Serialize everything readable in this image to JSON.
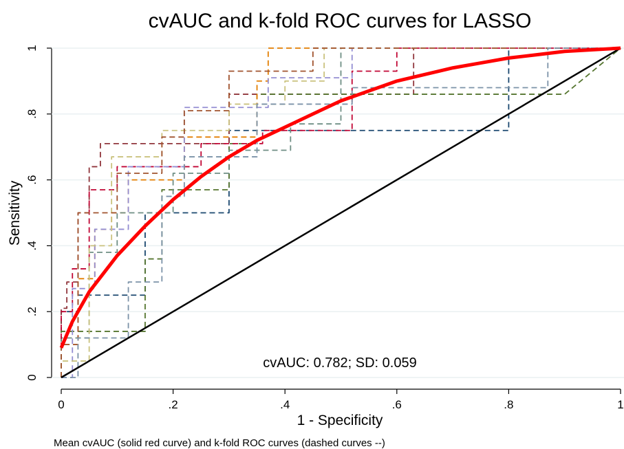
{
  "chart_data": {
    "type": "line",
    "title": "cvAUC and k-fold ROC curves for LASSO",
    "x_label": "1 - Specificity",
    "y_label": "Sensitivity",
    "annotation": "cvAUC: 0.782; SD: 0.059",
    "note": "Mean cvAUC (solid red curve) and k-fold ROC curves (dashed curves --)",
    "xlim": [
      0,
      1
    ],
    "ylim": [
      0,
      1
    ],
    "xticks": [
      0,
      {
        "value": 0.2,
        "label": ".2"
      },
      {
        "value": 0.4,
        "label": ".4"
      },
      {
        "value": 0.6,
        "label": ".6"
      },
      {
        "value": 0.8,
        "label": ".8"
      },
      1
    ],
    "yticks": [
      0,
      {
        "value": 0.2,
        "label": ".2"
      },
      {
        "value": 0.4,
        "label": ".4"
      },
      {
        "value": 0.6,
        "label": ".6"
      },
      {
        "value": 0.8,
        "label": ".8"
      },
      1
    ],
    "grid": true,
    "series": [
      {
        "color": "#1a476f",
        "style": "dashed",
        "linewidth": 1.8,
        "x": [
          0,
          0,
          0.03,
          0.03,
          0.15,
          0.15,
          0.3,
          0.3,
          0.8,
          0.8,
          1
        ],
        "values": [
          0,
          0.2,
          0.2,
          0.25,
          0.25,
          0.5,
          0.5,
          0.75,
          0.75,
          1,
          1
        ]
      },
      {
        "color": "#90353b",
        "style": "dashed",
        "linewidth": 1.8,
        "x": [
          0,
          0,
          0.01,
          0.01,
          0.03,
          0.03,
          0.05,
          0.05,
          0.07,
          0.07,
          0.3,
          0.3,
          0.63,
          0.63,
          1
        ],
        "values": [
          0,
          0.21,
          0.21,
          0.29,
          0.29,
          0.5,
          0.5,
          0.64,
          0.64,
          0.71,
          0.71,
          0.86,
          0.86,
          1,
          1
        ]
      },
      {
        "color": "#55752f",
        "style": "dashed",
        "linewidth": 1.8,
        "x": [
          0,
          0,
          0.15,
          0.15,
          0.18,
          0.18,
          0.3,
          0.3,
          0.35,
          0.35,
          0.9,
          0.95,
          1
        ],
        "values": [
          0,
          0.14,
          0.14,
          0.36,
          0.36,
          0.57,
          0.57,
          0.71,
          0.71,
          0.86,
          0.86,
          0.93,
          1
        ]
      },
      {
        "color": "#e37e00",
        "style": "dashed",
        "linewidth": 1.8,
        "x": [
          0,
          0,
          0.03,
          0.03,
          0.06,
          0.06,
          0.09,
          0.09,
          0.12,
          0.12,
          0.22,
          0.22,
          0.35,
          0.35,
          0.37,
          0.37,
          1
        ],
        "values": [
          0,
          0.1,
          0.1,
          0.3,
          0.3,
          0.45,
          0.45,
          0.5,
          0.5,
          0.6,
          0.6,
          0.73,
          0.73,
          0.9,
          0.9,
          1,
          1
        ]
      },
      {
        "color": "#6e8e84",
        "style": "dashed",
        "linewidth": 1.8,
        "x": [
          0,
          0,
          0.05,
          0.05,
          0.1,
          0.1,
          0.2,
          0.2,
          0.3,
          0.3,
          0.41,
          0.41,
          0.5,
          0.5,
          1
        ],
        "values": [
          0,
          0.12,
          0.12,
          0.38,
          0.38,
          0.5,
          0.5,
          0.62,
          0.62,
          0.69,
          0.69,
          0.77,
          0.77,
          1,
          1
        ]
      },
      {
        "color": "#c10534",
        "style": "dashed",
        "linewidth": 1.8,
        "x": [
          0,
          0,
          0.02,
          0.02,
          0.05,
          0.05,
          0.1,
          0.1,
          0.25,
          0.25,
          0.36,
          0.36,
          0.52,
          0.52,
          0.6,
          0.6,
          1
        ],
        "values": [
          0.09,
          0.2,
          0.2,
          0.33,
          0.33,
          0.57,
          0.57,
          0.64,
          0.64,
          0.71,
          0.71,
          0.75,
          0.75,
          0.93,
          0.93,
          1,
          1
        ]
      },
      {
        "color": "#938dd2",
        "style": "dashed",
        "linewidth": 1.8,
        "x": [
          0,
          0.02,
          0.02,
          0.06,
          0.06,
          0.12,
          0.12,
          0.22,
          0.22,
          0.37,
          0.37,
          0.52,
          0.52,
          1
        ],
        "values": [
          0,
          0,
          0.27,
          0.27,
          0.45,
          0.45,
          0.64,
          0.64,
          0.82,
          0.82,
          0.91,
          0.91,
          1,
          1
        ]
      },
      {
        "color": "#cac27e",
        "style": "dashed",
        "linewidth": 1.8,
        "x": [
          0,
          0,
          0.05,
          0.05,
          0.09,
          0.09,
          0.18,
          0.18,
          0.3,
          0.3,
          0.4,
          0.4,
          0.47,
          0.47,
          1
        ],
        "values": [
          0,
          0.05,
          0.05,
          0.4,
          0.4,
          0.67,
          0.67,
          0.75,
          0.75,
          0.83,
          0.83,
          0.9,
          0.9,
          1,
          1
        ]
      },
      {
        "color": "#a0522d",
        "style": "dashed",
        "linewidth": 1.8,
        "x": [
          0,
          0,
          0.03,
          0.03,
          0.1,
          0.1,
          0.18,
          0.18,
          0.22,
          0.22,
          0.3,
          0.3,
          0.45,
          0.45,
          1
        ],
        "values": [
          0,
          0.1,
          0.1,
          0.5,
          0.5,
          0.62,
          0.62,
          0.73,
          0.73,
          0.81,
          0.81,
          0.93,
          0.93,
          1,
          1
        ]
      },
      {
        "color": "#7b92a8",
        "style": "dashed",
        "linewidth": 1.8,
        "x": [
          0,
          0.03,
          0.03,
          0.12,
          0.12,
          0.18,
          0.18,
          0.22,
          0.22,
          0.35,
          0.35,
          0.52,
          0.52,
          0.87,
          0.87,
          1
        ],
        "values": [
          0,
          0,
          0.12,
          0.12,
          0.29,
          0.29,
          0.55,
          0.55,
          0.67,
          0.67,
          0.83,
          0.83,
          0.88,
          0.88,
          1,
          1
        ]
      },
      {
        "color": "#000000",
        "style": "solid",
        "linewidth": 2.5,
        "x": [
          0,
          1
        ],
        "values": [
          0,
          1
        ]
      },
      {
        "color": "#ff0000",
        "style": "solid",
        "linewidth": 5,
        "x": [
          0,
          0.02,
          0.05,
          0.1,
          0.15,
          0.2,
          0.25,
          0.3,
          0.35,
          0.4,
          0.45,
          0.5,
          0.55,
          0.6,
          0.65,
          0.7,
          0.75,
          0.8,
          0.85,
          0.9,
          0.95,
          1
        ],
        "values": [
          0.09,
          0.17,
          0.26,
          0.37,
          0.46,
          0.54,
          0.61,
          0.67,
          0.72,
          0.76,
          0.8,
          0.84,
          0.87,
          0.9,
          0.92,
          0.94,
          0.955,
          0.97,
          0.98,
          0.99,
          0.995,
          1
        ]
      }
    ]
  }
}
